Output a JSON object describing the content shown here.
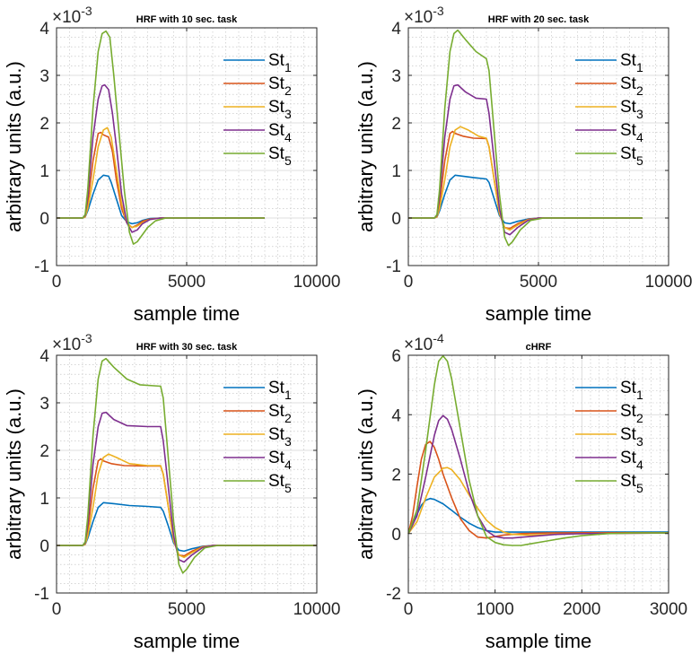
{
  "chart_data": [
    {
      "type": "line",
      "title": "HRF with 10 sec. task",
      "xlabel": "sample time",
      "ylabel": "arbitrary units (a.u.)",
      "multiplier_base": "×10",
      "multiplier_exp": "-3",
      "xlim": [
        0,
        10000
      ],
      "ylim": [
        -1,
        4
      ],
      "x_ticks": [
        0,
        5000,
        10000
      ],
      "y_ticks": [
        -1,
        0,
        1,
        2,
        3,
        4
      ],
      "grid": true,
      "legend": "top-right",
      "series": [
        {
          "name": "St",
          "sub": "1",
          "color": "#0072BD",
          "x": [
            0,
            1000,
            1100,
            1200,
            1400,
            1600,
            1800,
            2000,
            2100,
            2300,
            2500,
            2700,
            2900,
            3100,
            3300,
            3600,
            4000,
            8000
          ],
          "y": [
            0,
            0,
            0.02,
            0.15,
            0.5,
            0.8,
            0.9,
            0.88,
            0.75,
            0.4,
            0.05,
            -0.08,
            -0.12,
            -0.1,
            -0.05,
            -0.01,
            0,
            0
          ]
        },
        {
          "name": "St",
          "sub": "2",
          "color": "#D95319",
          "x": [
            0,
            1000,
            1100,
            1200,
            1400,
            1600,
            1700,
            1800,
            2000,
            2150,
            2300,
            2500,
            2700,
            2900,
            3100,
            3300,
            3600,
            4000,
            8000
          ],
          "y": [
            0,
            0,
            0.04,
            0.3,
            1.2,
            1.78,
            1.8,
            1.75,
            1.7,
            1.4,
            0.8,
            0.2,
            -0.1,
            -0.2,
            -0.15,
            -0.07,
            -0.02,
            0,
            0
          ]
        },
        {
          "name": "St",
          "sub": "3",
          "color": "#EDB120",
          "x": [
            0,
            1000,
            1100,
            1200,
            1400,
            1600,
            1800,
            1950,
            2100,
            2300,
            2500,
            2700,
            2900,
            3100,
            3300,
            3600,
            4000,
            8000
          ],
          "y": [
            0,
            0,
            0.02,
            0.2,
            0.8,
            1.5,
            1.85,
            1.9,
            1.7,
            1.0,
            0.3,
            -0.1,
            -0.2,
            -0.17,
            -0.1,
            -0.03,
            0,
            0
          ]
        },
        {
          "name": "St",
          "sub": "4",
          "color": "#7E2F8E",
          "x": [
            0,
            1000,
            1100,
            1200,
            1400,
            1600,
            1750,
            1850,
            2000,
            2150,
            2300,
            2500,
            2700,
            2900,
            3100,
            3300,
            3600,
            4000,
            8000
          ],
          "y": [
            0,
            0,
            0.05,
            0.45,
            1.7,
            2.5,
            2.78,
            2.8,
            2.7,
            2.2,
            1.5,
            0.5,
            -0.1,
            -0.3,
            -0.25,
            -0.12,
            -0.03,
            0,
            0
          ]
        },
        {
          "name": "St",
          "sub": "5",
          "color": "#77AC30",
          "x": [
            0,
            1000,
            1100,
            1200,
            1400,
            1600,
            1750,
            1900,
            2050,
            2200,
            2400,
            2600,
            2800,
            2950,
            3100,
            3300,
            3500,
            3800,
            4200,
            8000
          ],
          "y": [
            0,
            0,
            0.07,
            0.6,
            2.3,
            3.5,
            3.88,
            3.93,
            3.8,
            3.0,
            1.8,
            0.6,
            -0.3,
            -0.55,
            -0.5,
            -0.35,
            -0.2,
            -0.06,
            0,
            0
          ]
        }
      ]
    },
    {
      "type": "line",
      "title": "HRF with 20 sec. task",
      "xlabel": "sample time",
      "ylabel": "arbitrary units (a.u.)",
      "multiplier_base": "×10",
      "multiplier_exp": "-3",
      "xlim": [
        0,
        10000
      ],
      "ylim": [
        -1,
        4
      ],
      "x_ticks": [
        0,
        5000,
        10000
      ],
      "y_ticks": [
        -1,
        0,
        1,
        2,
        3,
        4
      ],
      "grid": true,
      "legend": "top-right",
      "series": [
        {
          "name": "St",
          "sub": "1",
          "color": "#0072BD",
          "x": [
            0,
            1000,
            1100,
            1200,
            1400,
            1600,
            1800,
            2100,
            2500,
            3000,
            3100,
            3300,
            3500,
            3700,
            3900,
            4200,
            4600,
            5000,
            9000
          ],
          "y": [
            0,
            0,
            0.02,
            0.15,
            0.5,
            0.8,
            0.9,
            0.88,
            0.85,
            0.82,
            0.75,
            0.4,
            0.05,
            -0.1,
            -0.12,
            -0.07,
            -0.02,
            0,
            0
          ]
        },
        {
          "name": "St",
          "sub": "2",
          "color": "#D95319",
          "x": [
            0,
            1000,
            1100,
            1200,
            1400,
            1600,
            1700,
            1800,
            2100,
            2500,
            3000,
            3100,
            3300,
            3500,
            3700,
            3900,
            4200,
            4600,
            5000,
            9000
          ],
          "y": [
            0,
            0,
            0.04,
            0.3,
            1.2,
            1.78,
            1.82,
            1.78,
            1.72,
            1.68,
            1.67,
            1.5,
            0.8,
            0.1,
            -0.2,
            -0.22,
            -0.12,
            -0.03,
            0,
            0
          ]
        },
        {
          "name": "St",
          "sub": "3",
          "color": "#EDB120",
          "x": [
            0,
            1000,
            1100,
            1200,
            1400,
            1600,
            1800,
            2000,
            2300,
            2700,
            3000,
            3100,
            3300,
            3500,
            3700,
            3900,
            4200,
            4600,
            5000,
            9000
          ],
          "y": [
            0,
            0,
            0.02,
            0.2,
            0.8,
            1.5,
            1.85,
            1.92,
            1.85,
            1.72,
            1.68,
            1.5,
            0.8,
            0.1,
            -0.2,
            -0.25,
            -0.15,
            -0.04,
            0,
            0
          ]
        },
        {
          "name": "St",
          "sub": "4",
          "color": "#7E2F8E",
          "x": [
            0,
            1000,
            1100,
            1200,
            1400,
            1600,
            1750,
            1900,
            2200,
            2600,
            3000,
            3100,
            3300,
            3500,
            3700,
            3900,
            4200,
            4600,
            5000,
            9000
          ],
          "y": [
            0,
            0,
            0.05,
            0.45,
            1.7,
            2.5,
            2.78,
            2.8,
            2.65,
            2.52,
            2.5,
            2.2,
            1.2,
            0.2,
            -0.3,
            -0.35,
            -0.2,
            -0.05,
            0,
            0
          ]
        },
        {
          "name": "St",
          "sub": "5",
          "color": "#77AC30",
          "x": [
            0,
            1000,
            1100,
            1200,
            1400,
            1600,
            1750,
            1900,
            2200,
            2600,
            3000,
            3100,
            3300,
            3500,
            3700,
            3850,
            4000,
            4300,
            4700,
            5200,
            9000
          ],
          "y": [
            0,
            0,
            0.07,
            0.6,
            2.3,
            3.5,
            3.88,
            3.95,
            3.75,
            3.5,
            3.35,
            3.1,
            1.8,
            0.5,
            -0.4,
            -0.58,
            -0.5,
            -0.25,
            -0.05,
            0,
            0
          ]
        }
      ]
    },
    {
      "type": "line",
      "title": "HRF with 30 sec. task",
      "xlabel": "sample time",
      "ylabel": "arbitrary units (a.u.)",
      "multiplier_base": "×10",
      "multiplier_exp": "-3",
      "xlim": [
        0,
        10000
      ],
      "ylim": [
        -1,
        4
      ],
      "x_ticks": [
        0,
        5000,
        10000
      ],
      "y_ticks": [
        -1,
        0,
        1,
        2,
        3,
        4
      ],
      "grid": true,
      "legend": "top-right",
      "series": [
        {
          "name": "St",
          "sub": "1",
          "color": "#0072BD",
          "x": [
            0,
            1000,
            1100,
            1200,
            1400,
            1600,
            1800,
            2200,
            2800,
            3500,
            4000,
            4100,
            4300,
            4500,
            4700,
            4900,
            5200,
            5600,
            6000,
            10000
          ],
          "y": [
            0,
            0,
            0.02,
            0.15,
            0.5,
            0.8,
            0.9,
            0.88,
            0.84,
            0.82,
            0.8,
            0.72,
            0.4,
            0.05,
            -0.1,
            -0.12,
            -0.07,
            -0.02,
            0,
            0
          ]
        },
        {
          "name": "St",
          "sub": "2",
          "color": "#D95319",
          "x": [
            0,
            1000,
            1100,
            1200,
            1400,
            1600,
            1700,
            1800,
            2100,
            2600,
            3500,
            4000,
            4100,
            4300,
            4500,
            4700,
            4900,
            5200,
            5600,
            6000,
            10000
          ],
          "y": [
            0,
            0,
            0.04,
            0.3,
            1.2,
            1.78,
            1.82,
            1.78,
            1.72,
            1.68,
            1.67,
            1.67,
            1.5,
            0.8,
            0.1,
            -0.2,
            -0.22,
            -0.12,
            -0.03,
            0,
            0
          ]
        },
        {
          "name": "St",
          "sub": "3",
          "color": "#EDB120",
          "x": [
            0,
            1000,
            1100,
            1200,
            1400,
            1600,
            1800,
            2000,
            2300,
            2800,
            3500,
            4000,
            4100,
            4300,
            4500,
            4700,
            4900,
            5200,
            5600,
            6000,
            10000
          ],
          "y": [
            0,
            0,
            0.02,
            0.2,
            0.8,
            1.5,
            1.85,
            1.92,
            1.85,
            1.72,
            1.68,
            1.68,
            1.5,
            0.8,
            0.1,
            -0.2,
            -0.25,
            -0.15,
            -0.04,
            0,
            0
          ]
        },
        {
          "name": "St",
          "sub": "4",
          "color": "#7E2F8E",
          "x": [
            0,
            1000,
            1100,
            1200,
            1400,
            1600,
            1750,
            1900,
            2200,
            2700,
            3500,
            4000,
            4100,
            4300,
            4500,
            4700,
            4900,
            5200,
            5600,
            6000,
            10000
          ],
          "y": [
            0,
            0,
            0.05,
            0.45,
            1.7,
            2.5,
            2.78,
            2.8,
            2.65,
            2.52,
            2.5,
            2.5,
            2.2,
            1.2,
            0.2,
            -0.3,
            -0.35,
            -0.2,
            -0.05,
            0,
            0
          ]
        },
        {
          "name": "St",
          "sub": "5",
          "color": "#77AC30",
          "x": [
            0,
            1000,
            1100,
            1200,
            1400,
            1600,
            1750,
            1900,
            2200,
            2700,
            3200,
            4000,
            4100,
            4300,
            4500,
            4700,
            4850,
            5000,
            5300,
            5700,
            6200,
            10000
          ],
          "y": [
            0,
            0,
            0.07,
            0.6,
            2.3,
            3.5,
            3.88,
            3.93,
            3.75,
            3.5,
            3.38,
            3.35,
            3.1,
            1.8,
            0.5,
            -0.4,
            -0.58,
            -0.5,
            -0.25,
            -0.05,
            0,
            0
          ]
        }
      ]
    },
    {
      "type": "line",
      "title": "cHRF",
      "xlabel": "sample time",
      "ylabel": "arbitrary units (a.u.)",
      "multiplier_base": "×10",
      "multiplier_exp": "-4",
      "xlim": [
        0,
        3000
      ],
      "ylim": [
        -2,
        6
      ],
      "x_ticks": [
        0,
        1000,
        2000,
        3000
      ],
      "y_ticks": [
        -2,
        0,
        2,
        4,
        6
      ],
      "grid": true,
      "legend": "top-right",
      "series": [
        {
          "name": "St",
          "sub": "1",
          "color": "#0072BD",
          "x": [
            0,
            50,
            100,
            150,
            200,
            250,
            300,
            400,
            500,
            600,
            700,
            800,
            900,
            1000,
            1200,
            1500,
            2000,
            3000
          ],
          "y": [
            0,
            0.3,
            0.65,
            0.95,
            1.12,
            1.18,
            1.15,
            1.0,
            0.78,
            0.55,
            0.35,
            0.2,
            0.1,
            0.05,
            0.05,
            0.05,
            0.05,
            0.05
          ]
        },
        {
          "name": "St",
          "sub": "2",
          "color": "#D95319",
          "x": [
            0,
            50,
            100,
            150,
            200,
            250,
            300,
            350,
            400,
            500,
            600,
            700,
            800,
            900,
            1000,
            1100,
            1300,
            1600,
            2000,
            3000
          ],
          "y": [
            0,
            0.6,
            1.6,
            2.5,
            3.0,
            3.1,
            2.9,
            2.5,
            2.0,
            1.2,
            0.5,
            0.1,
            -0.12,
            -0.15,
            -0.1,
            -0.05,
            0,
            0.02,
            0.03,
            0.03
          ]
        },
        {
          "name": "St",
          "sub": "3",
          "color": "#EDB120",
          "x": [
            0,
            100,
            200,
            300,
            400,
            450,
            500,
            600,
            700,
            800,
            900,
            1000,
            1100,
            1200,
            1400,
            1700,
            2000,
            3000
          ],
          "y": [
            0,
            0.4,
            1.2,
            1.9,
            2.2,
            2.22,
            2.15,
            1.8,
            1.3,
            0.85,
            0.45,
            0.2,
            0.05,
            -0.03,
            -0.05,
            -0.02,
            0,
            0.02
          ]
        },
        {
          "name": "St",
          "sub": "4",
          "color": "#7E2F8E",
          "x": [
            0,
            100,
            200,
            300,
            350,
            400,
            450,
            500,
            600,
            700,
            800,
            900,
            1000,
            1100,
            1200,
            1400,
            1700,
            2000,
            3000
          ],
          "y": [
            0,
            0.6,
            1.9,
            3.3,
            3.8,
            3.97,
            3.85,
            3.5,
            2.5,
            1.4,
            0.6,
            0.1,
            -0.1,
            -0.15,
            -0.15,
            -0.1,
            -0.03,
            0,
            0.02
          ]
        },
        {
          "name": "St",
          "sub": "5",
          "color": "#77AC30",
          "x": [
            0,
            100,
            200,
            300,
            350,
            400,
            450,
            500,
            600,
            700,
            800,
            900,
            1000,
            1100,
            1200,
            1300,
            1400,
            1600,
            1800,
            2000,
            2300,
            2600,
            3000
          ],
          "y": [
            0,
            0.8,
            2.8,
            5.0,
            5.8,
            5.98,
            5.8,
            5.2,
            3.5,
            1.8,
            0.6,
            -0.1,
            -0.3,
            -0.38,
            -0.4,
            -0.4,
            -0.35,
            -0.25,
            -0.15,
            -0.07,
            0,
            0.02,
            0.02
          ]
        }
      ]
    }
  ]
}
